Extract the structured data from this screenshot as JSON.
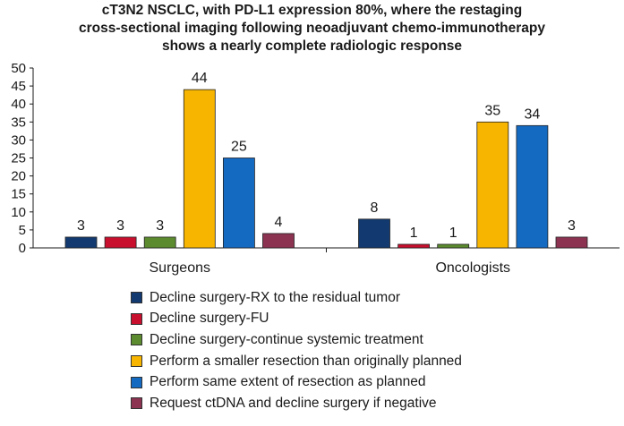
{
  "chart_data": {
    "type": "bar",
    "title_lines": [
      "cT3N2 NSCLC, with PD-L1 expression 80%, where the restaging",
      "cross-sectional imaging following neoadjuvant chemo-immunotherapy",
      "shows a nearly complete radiologic response"
    ],
    "categories": [
      "Surgeons",
      "Oncologists"
    ],
    "series": [
      {
        "name": "Decline surgery-RX to the residual tumor",
        "color": "#123a70",
        "values": [
          3,
          8
        ]
      },
      {
        "name": "Decline surgery-FU",
        "color": "#c8102e",
        "values": [
          3,
          1
        ]
      },
      {
        "name": "Decline surgery-continue systemic treatment",
        "color": "#5c8a2e",
        "values": [
          3,
          1
        ]
      },
      {
        "name": "Perform a smaller resection than originally planned",
        "color": "#f7b500",
        "values": [
          44,
          35
        ]
      },
      {
        "name": "Perform same extent of resection as planned",
        "color": "#1469c1",
        "values": [
          25,
          34
        ]
      },
      {
        "name": "Request ctDNA and decline surgery if negative",
        "color": "#8b3350",
        "values": [
          4,
          3
        ]
      }
    ],
    "ylim": [
      0,
      50
    ],
    "yticks": [
      0,
      5,
      10,
      15,
      20,
      25,
      30,
      35,
      40,
      45,
      50
    ],
    "xlabel": "",
    "ylabel": "",
    "grid": false,
    "legend_position": "bottom"
  }
}
